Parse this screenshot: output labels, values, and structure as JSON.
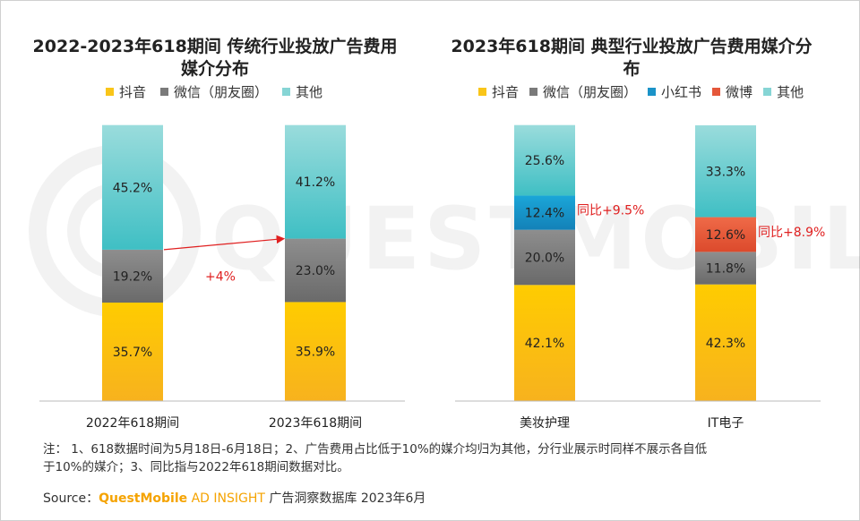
{
  "colors": {
    "douyin": "#f9c519",
    "wechat": "#7a7a7a",
    "xiaohongshu": "#1b93c8",
    "weibo": "#e5573a",
    "other": "#86d5d5",
    "annotation": "#e02020"
  },
  "watermark": "QUESTMOBILE",
  "chart_data": [
    {
      "type": "bar",
      "stacked": true,
      "title": "2022-2023年618期间 传统行业投放广告费用媒介分布",
      "title_line1": "2022-2023年618期间 传统行业投放广告费用",
      "title_line2": "媒介分布",
      "legend_position": "top",
      "categories": [
        "2022年618期间",
        "2023年618期间"
      ],
      "series": [
        {
          "name": "抖音",
          "color_key": "douyin",
          "values": [
            35.7,
            35.9
          ],
          "labels": [
            "35.7%",
            "35.9%"
          ]
        },
        {
          "name": "微信（朋友圈）",
          "color_key": "wechat",
          "values": [
            19.2,
            23.0
          ],
          "labels": [
            "19.2%",
            "23.0%"
          ]
        },
        {
          "name": "其他",
          "color_key": "other",
          "values": [
            45.2,
            41.2
          ],
          "labels": [
            "45.2%",
            "41.2%"
          ]
        }
      ],
      "ylim": [
        0,
        100
      ],
      "annotations": [
        {
          "text": "+4%"
        }
      ]
    },
    {
      "type": "bar",
      "stacked": true,
      "title": "2023年618期间 典型行业投放广告费用媒介分布",
      "legend_position": "top",
      "categories": [
        "美妆护理",
        "IT电子"
      ],
      "series": [
        {
          "name": "抖音",
          "color_key": "douyin",
          "values": [
            42.1,
            42.3
          ],
          "labels": [
            "42.1%",
            "42.3%"
          ]
        },
        {
          "name": "微信（朋友圈）",
          "color_key": "wechat",
          "values": [
            20.0,
            11.8
          ],
          "labels": [
            "20.0%",
            "11.8%"
          ]
        },
        {
          "name": "小红书",
          "color_key": "xiaohongshu",
          "values": [
            12.4,
            0
          ],
          "labels": [
            "12.4%",
            ""
          ]
        },
        {
          "name": "微博",
          "color_key": "weibo",
          "values": [
            0,
            12.6
          ],
          "labels": [
            "",
            "12.6%"
          ]
        },
        {
          "name": "其他",
          "color_key": "other",
          "values": [
            25.6,
            33.3
          ],
          "labels": [
            "25.6%",
            "33.3%"
          ]
        }
      ],
      "ylim": [
        0,
        100
      ],
      "annotations": [
        {
          "text": "同比+9.5%"
        },
        {
          "text": "同比+8.9%"
        }
      ]
    }
  ],
  "footer": {
    "note_line1": "注：  1、618数据时间为5月18日-6月18日；2、广告费用占比低于10%的媒介均归为其他，分行业展示时同样不展示各自低",
    "note_line2": "于10%的媒介；3、同比指与2022年618期间数据对比。",
    "source_label": "Source：",
    "source_brand": "QuestMobile",
    "source_brand_sub": " AD INSIGHT",
    "source_rest": " 广告洞察数据库 2023年6月"
  }
}
